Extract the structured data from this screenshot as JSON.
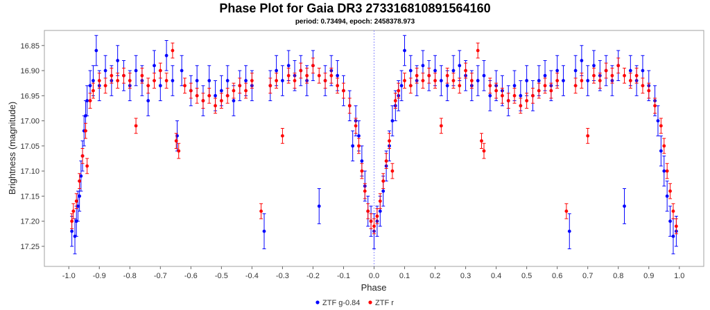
{
  "chart_data": {
    "type": "scatter",
    "title": "Phase Plot for Gaia DR3 273316810891564160",
    "subtitle": "period: 0.73494, epoch: 2458378.973",
    "xlabel": "Phase",
    "ylabel": "Brightness (magnitude)",
    "xlim": [
      -1.08,
      1.08
    ],
    "ylim": [
      17.29,
      16.82
    ],
    "y_inverted": true,
    "x_ticks": [
      "-1.0",
      "-0.9",
      "-0.8",
      "-0.7",
      "-0.6",
      "-0.5",
      "-0.4",
      "-0.3",
      "-0.2",
      "-0.1",
      "0.0",
      "0.1",
      "0.2",
      "0.3",
      "0.4",
      "0.5",
      "0.6",
      "0.7",
      "0.8",
      "0.9",
      "1.0"
    ],
    "y_ticks": [
      "16.85",
      "16.90",
      "16.95",
      "17.00",
      "17.05",
      "17.10",
      "17.15",
      "17.20",
      "17.25"
    ],
    "reference_line_x": 0.0,
    "legend_placement": "bottom-center",
    "grid": false,
    "series": [
      {
        "name": "ZTF g-0.84",
        "color": "#0000ff",
        "points": [
          [
            -0.99,
            17.22,
            0.03
          ],
          [
            -0.98,
            17.23,
            0.035
          ],
          [
            -0.975,
            17.2,
            0.03
          ],
          [
            -0.97,
            17.17,
            0.03
          ],
          [
            -0.965,
            17.15,
            0.03
          ],
          [
            -0.96,
            17.11,
            0.03
          ],
          [
            -0.955,
            17.07,
            0.03
          ],
          [
            -0.95,
            17.02,
            0.03
          ],
          [
            -0.945,
            16.99,
            0.03
          ],
          [
            -0.94,
            16.96,
            0.03
          ],
          [
            -0.93,
            16.93,
            0.03
          ],
          [
            -0.92,
            16.92,
            0.03
          ],
          [
            -0.91,
            16.86,
            0.03
          ],
          [
            -0.9,
            16.93,
            0.03
          ],
          [
            -0.88,
            16.9,
            0.03
          ],
          [
            -0.86,
            16.92,
            0.03
          ],
          [
            -0.84,
            16.88,
            0.03
          ],
          [
            -0.82,
            16.91,
            0.03
          ],
          [
            -0.8,
            16.93,
            0.03
          ],
          [
            -0.78,
            16.9,
            0.03
          ],
          [
            -0.76,
            16.92,
            0.03
          ],
          [
            -0.74,
            16.96,
            0.03
          ],
          [
            -0.72,
            16.89,
            0.03
          ],
          [
            -0.7,
            16.93,
            0.03
          ],
          [
            -0.68,
            16.87,
            0.03
          ],
          [
            -0.66,
            16.92,
            0.03
          ],
          [
            -0.645,
            17.03,
            0.03
          ],
          [
            -0.63,
            16.9,
            0.03
          ],
          [
            -0.6,
            16.94,
            0.03
          ],
          [
            -0.58,
            16.92,
            0.03
          ],
          [
            -0.56,
            16.96,
            0.03
          ],
          [
            -0.54,
            16.92,
            0.03
          ],
          [
            -0.52,
            16.95,
            0.03
          ],
          [
            -0.5,
            16.94,
            0.03
          ],
          [
            -0.48,
            16.92,
            0.03
          ],
          [
            -0.46,
            16.96,
            0.03
          ],
          [
            -0.44,
            16.93,
            0.03
          ],
          [
            -0.42,
            16.92,
            0.03
          ],
          [
            -0.4,
            16.93,
            0.03
          ],
          [
            -0.36,
            17.22,
            0.035
          ],
          [
            -0.34,
            16.93,
            0.03
          ],
          [
            -0.32,
            16.9,
            0.03
          ],
          [
            -0.3,
            16.92,
            0.03
          ],
          [
            -0.28,
            16.89,
            0.03
          ],
          [
            -0.26,
            16.91,
            0.03
          ],
          [
            -0.24,
            16.9,
            0.03
          ],
          [
            -0.22,
            16.92,
            0.03
          ],
          [
            -0.2,
            16.89,
            0.03
          ],
          [
            -0.18,
            17.17,
            0.035
          ],
          [
            -0.16,
            16.92,
            0.03
          ],
          [
            -0.14,
            16.9,
            0.03
          ],
          [
            -0.12,
            16.91,
            0.03
          ],
          [
            -0.1,
            16.94,
            0.03
          ],
          [
            -0.08,
            16.97,
            0.03
          ],
          [
            -0.07,
            17.05,
            0.03
          ],
          [
            -0.06,
            17.0,
            0.03
          ],
          [
            -0.05,
            17.03,
            0.03
          ],
          [
            -0.04,
            17.08,
            0.03
          ],
          [
            -0.03,
            17.13,
            0.03
          ],
          [
            -0.02,
            17.18,
            0.03
          ],
          [
            -0.01,
            17.2,
            0.03
          ],
          [
            0.0,
            17.22,
            0.035
          ],
          [
            0.01,
            17.2,
            0.03
          ],
          [
            0.02,
            17.18,
            0.03
          ],
          [
            0.03,
            17.14,
            0.03
          ],
          [
            0.04,
            17.09,
            0.03
          ],
          [
            0.05,
            17.05,
            0.03
          ],
          [
            0.06,
            17.0,
            0.03
          ],
          [
            0.07,
            16.97,
            0.03
          ],
          [
            0.08,
            16.95,
            0.03
          ],
          [
            0.09,
            16.93,
            0.03
          ],
          [
            0.1,
            16.86,
            0.03
          ],
          [
            0.12,
            16.9,
            0.03
          ],
          [
            0.14,
            16.92,
            0.03
          ],
          [
            0.16,
            16.89,
            0.03
          ],
          [
            0.18,
            16.91,
            0.03
          ],
          [
            0.2,
            16.9,
            0.03
          ],
          [
            0.22,
            16.92,
            0.03
          ],
          [
            0.24,
            16.93,
            0.03
          ],
          [
            0.26,
            16.9,
            0.03
          ],
          [
            0.28,
            16.89,
            0.03
          ],
          [
            0.3,
            16.91,
            0.03
          ],
          [
            0.32,
            16.93,
            0.03
          ],
          [
            0.34,
            16.92,
            0.03
          ],
          [
            0.36,
            16.91,
            0.03
          ],
          [
            0.38,
            16.95,
            0.03
          ],
          [
            0.4,
            16.93,
            0.03
          ],
          [
            0.42,
            16.94,
            0.03
          ],
          [
            0.44,
            16.96,
            0.03
          ],
          [
            0.46,
            16.93,
            0.03
          ],
          [
            0.48,
            16.95,
            0.03
          ],
          [
            0.5,
            16.92,
            0.03
          ],
          [
            0.52,
            16.95,
            0.03
          ],
          [
            0.54,
            16.92,
            0.03
          ],
          [
            0.56,
            16.91,
            0.03
          ],
          [
            0.58,
            16.93,
            0.03
          ],
          [
            0.6,
            16.9,
            0.03
          ],
          [
            0.62,
            16.92,
            0.03
          ],
          [
            0.64,
            17.22,
            0.035
          ],
          [
            0.66,
            16.9,
            0.03
          ],
          [
            0.68,
            16.88,
            0.03
          ],
          [
            0.7,
            16.92,
            0.03
          ],
          [
            0.72,
            16.89,
            0.03
          ],
          [
            0.74,
            16.91,
            0.03
          ],
          [
            0.76,
            16.9,
            0.03
          ],
          [
            0.78,
            16.92,
            0.03
          ],
          [
            0.8,
            16.89,
            0.03
          ],
          [
            0.82,
            17.17,
            0.035
          ],
          [
            0.84,
            16.9,
            0.03
          ],
          [
            0.86,
            16.92,
            0.03
          ],
          [
            0.88,
            16.9,
            0.03
          ],
          [
            0.9,
            16.93,
            0.03
          ],
          [
            0.92,
            16.96,
            0.03
          ],
          [
            0.93,
            17.0,
            0.03
          ],
          [
            0.94,
            17.06,
            0.03
          ],
          [
            0.95,
            17.1,
            0.03
          ],
          [
            0.96,
            17.15,
            0.03
          ],
          [
            0.97,
            17.2,
            0.03
          ],
          [
            0.98,
            17.23,
            0.035
          ],
          [
            0.99,
            17.22,
            0.03
          ]
        ]
      },
      {
        "name": "ZTF r",
        "color": "#ff0000",
        "points": [
          [
            -0.99,
            17.2,
            0.015
          ],
          [
            -0.985,
            17.18,
            0.015
          ],
          [
            -0.975,
            17.16,
            0.015
          ],
          [
            -0.965,
            17.12,
            0.015
          ],
          [
            -0.955,
            17.07,
            0.015
          ],
          [
            -0.945,
            17.02,
            0.015
          ],
          [
            -0.94,
            17.09,
            0.015
          ],
          [
            -0.93,
            16.96,
            0.015
          ],
          [
            -0.92,
            16.94,
            0.015
          ],
          [
            -0.9,
            16.92,
            0.015
          ],
          [
            -0.88,
            16.93,
            0.015
          ],
          [
            -0.86,
            16.91,
            0.015
          ],
          [
            -0.84,
            16.92,
            0.015
          ],
          [
            -0.82,
            16.91,
            0.015
          ],
          [
            -0.8,
            16.92,
            0.015
          ],
          [
            -0.78,
            17.01,
            0.015
          ],
          [
            -0.76,
            16.91,
            0.015
          ],
          [
            -0.74,
            16.93,
            0.015
          ],
          [
            -0.72,
            16.92,
            0.015
          ],
          [
            -0.7,
            16.9,
            0.015
          ],
          [
            -0.68,
            16.92,
            0.015
          ],
          [
            -0.66,
            16.86,
            0.015
          ],
          [
            -0.648,
            17.04,
            0.015
          ],
          [
            -0.64,
            17.06,
            0.015
          ],
          [
            -0.62,
            16.93,
            0.015
          ],
          [
            -0.6,
            16.94,
            0.015
          ],
          [
            -0.58,
            16.95,
            0.015
          ],
          [
            -0.56,
            16.96,
            0.015
          ],
          [
            -0.54,
            16.95,
            0.015
          ],
          [
            -0.52,
            16.97,
            0.015
          ],
          [
            -0.5,
            16.96,
            0.015
          ],
          [
            -0.48,
            16.95,
            0.015
          ],
          [
            -0.46,
            16.94,
            0.015
          ],
          [
            -0.44,
            16.93,
            0.015
          ],
          [
            -0.42,
            16.94,
            0.015
          ],
          [
            -0.4,
            16.92,
            0.015
          ],
          [
            -0.37,
            17.18,
            0.015
          ],
          [
            -0.34,
            16.93,
            0.015
          ],
          [
            -0.32,
            16.92,
            0.015
          ],
          [
            -0.3,
            17.03,
            0.015
          ],
          [
            -0.28,
            16.91,
            0.015
          ],
          [
            -0.26,
            16.92,
            0.015
          ],
          [
            -0.24,
            16.9,
            0.015
          ],
          [
            -0.22,
            16.91,
            0.015
          ],
          [
            -0.2,
            16.89,
            0.015
          ],
          [
            -0.18,
            16.91,
            0.015
          ],
          [
            -0.16,
            16.92,
            0.015
          ],
          [
            -0.14,
            16.91,
            0.015
          ],
          [
            -0.12,
            16.93,
            0.015
          ],
          [
            -0.1,
            16.94,
            0.015
          ],
          [
            -0.08,
            16.97,
            0.015
          ],
          [
            -0.06,
            17.01,
            0.015
          ],
          [
            -0.05,
            17.05,
            0.015
          ],
          [
            -0.04,
            17.1,
            0.015
          ],
          [
            -0.03,
            17.14,
            0.015
          ],
          [
            -0.02,
            17.18,
            0.015
          ],
          [
            -0.01,
            17.2,
            0.015
          ],
          [
            0.0,
            17.21,
            0.015
          ],
          [
            0.01,
            17.19,
            0.015
          ],
          [
            0.02,
            17.16,
            0.015
          ],
          [
            0.03,
            17.12,
            0.015
          ],
          [
            0.04,
            17.08,
            0.015
          ],
          [
            0.05,
            17.04,
            0.015
          ],
          [
            0.06,
            17.1,
            0.015
          ],
          [
            0.07,
            16.96,
            0.015
          ],
          [
            0.08,
            16.94,
            0.015
          ],
          [
            0.1,
            16.92,
            0.015
          ],
          [
            0.12,
            16.93,
            0.015
          ],
          [
            0.14,
            16.91,
            0.015
          ],
          [
            0.16,
            16.92,
            0.015
          ],
          [
            0.18,
            16.91,
            0.015
          ],
          [
            0.2,
            16.92,
            0.015
          ],
          [
            0.22,
            17.01,
            0.015
          ],
          [
            0.24,
            16.91,
            0.015
          ],
          [
            0.26,
            16.92,
            0.015
          ],
          [
            0.28,
            16.93,
            0.015
          ],
          [
            0.3,
            16.9,
            0.015
          ],
          [
            0.32,
            16.92,
            0.015
          ],
          [
            0.34,
            16.86,
            0.015
          ],
          [
            0.352,
            17.04,
            0.015
          ],
          [
            0.36,
            17.06,
            0.015
          ],
          [
            0.38,
            16.93,
            0.015
          ],
          [
            0.4,
            16.94,
            0.015
          ],
          [
            0.42,
            16.95,
            0.015
          ],
          [
            0.44,
            16.96,
            0.015
          ],
          [
            0.46,
            16.95,
            0.015
          ],
          [
            0.48,
            16.97,
            0.015
          ],
          [
            0.5,
            16.96,
            0.015
          ],
          [
            0.52,
            16.95,
            0.015
          ],
          [
            0.54,
            16.94,
            0.015
          ],
          [
            0.56,
            16.93,
            0.015
          ],
          [
            0.58,
            16.94,
            0.015
          ],
          [
            0.6,
            16.92,
            0.015
          ],
          [
            0.63,
            17.18,
            0.015
          ],
          [
            0.66,
            16.93,
            0.015
          ],
          [
            0.68,
            16.92,
            0.015
          ],
          [
            0.7,
            17.03,
            0.015
          ],
          [
            0.72,
            16.91,
            0.015
          ],
          [
            0.74,
            16.92,
            0.015
          ],
          [
            0.76,
            16.9,
            0.015
          ],
          [
            0.78,
            16.91,
            0.015
          ],
          [
            0.8,
            16.89,
            0.015
          ],
          [
            0.82,
            16.91,
            0.015
          ],
          [
            0.84,
            16.92,
            0.015
          ],
          [
            0.86,
            16.91,
            0.015
          ],
          [
            0.88,
            16.93,
            0.015
          ],
          [
            0.9,
            16.94,
            0.015
          ],
          [
            0.92,
            16.97,
            0.015
          ],
          [
            0.94,
            17.01,
            0.015
          ],
          [
            0.95,
            17.05,
            0.015
          ],
          [
            0.96,
            17.1,
            0.015
          ],
          [
            0.97,
            17.14,
            0.015
          ],
          [
            0.98,
            17.18,
            0.015
          ],
          [
            0.99,
            17.21,
            0.015
          ]
        ]
      }
    ]
  }
}
